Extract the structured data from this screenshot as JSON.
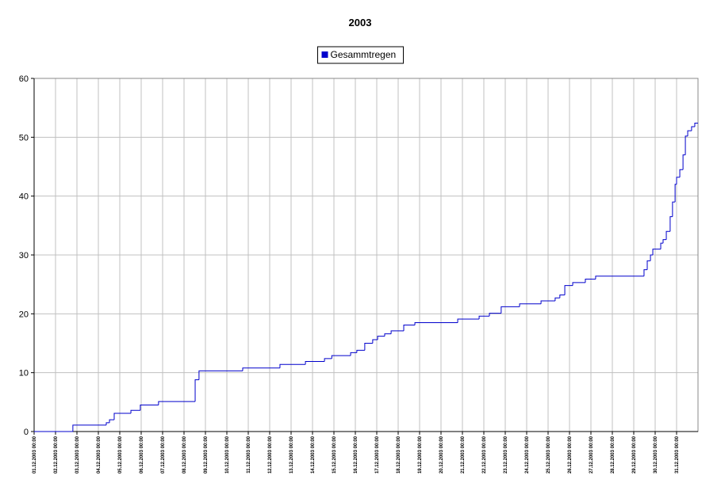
{
  "chart_data": {
    "type": "line",
    "step": true,
    "title": "2003",
    "series": [
      {
        "name": "Gesammtregen",
        "color": "#0000cc",
        "x": [
          0,
          1.81,
          3.37,
          3.52,
          3.74,
          4.52,
          4.96,
          5.81,
          7.52,
          7.7,
          9.74,
          11.48,
          12.67,
          13.56,
          13.9,
          14.78,
          15.07,
          15.44,
          15.81,
          16.04,
          16.37,
          16.67,
          17.26,
          17.78,
          19.78,
          20.78,
          21.26,
          21.81,
          22.67,
          23.67,
          24.33,
          24.55,
          24.78,
          25.15,
          25.74,
          26.22,
          28.48,
          28.63,
          28.78,
          28.89,
          29.26,
          29.37,
          29.52,
          29.7,
          29.81,
          29.93,
          30.0,
          30.15,
          30.3,
          30.41,
          30.52,
          30.7,
          30.85
        ],
        "values": [
          0,
          1.1,
          1.5,
          2.0,
          3.1,
          3.6,
          4.5,
          5.1,
          8.8,
          10.3,
          10.8,
          11.4,
          11.9,
          12.4,
          12.9,
          13.4,
          13.8,
          15.0,
          15.6,
          16.2,
          16.6,
          17.1,
          18.1,
          18.5,
          19.1,
          19.6,
          20.1,
          21.2,
          21.7,
          22.2,
          22.7,
          23.2,
          24.8,
          25.3,
          25.9,
          26.4,
          27.5,
          29.0,
          30.0,
          31.0,
          32.0,
          32.6,
          34.0,
          36.5,
          39.0,
          42.0,
          43.2,
          44.5,
          47.0,
          50.2,
          51.1,
          51.8,
          52.4
        ]
      }
    ],
    "xlim": [
      0,
      31
    ],
    "ylim": [
      0,
      60
    ],
    "yticks": [
      0,
      10,
      20,
      30,
      40,
      50,
      60
    ],
    "xticks": [
      {
        "value": 0,
        "label": "01.12.2003 00:00"
      },
      {
        "value": 1,
        "label": "02.12.2003 00:00"
      },
      {
        "value": 2,
        "label": "03.12.2003 00:00"
      },
      {
        "value": 3,
        "label": "04.12.2003 00:00"
      },
      {
        "value": 4,
        "label": "05.12.2003 00:00"
      },
      {
        "value": 5,
        "label": "06.12.2003 00:00"
      },
      {
        "value": 6,
        "label": "07.12.2003 00:00"
      },
      {
        "value": 7,
        "label": "08.12.2003 00:00"
      },
      {
        "value": 8,
        "label": "09.12.2003 00:00"
      },
      {
        "value": 9,
        "label": "10.12.2003 00:00"
      },
      {
        "value": 10,
        "label": "11.12.2003 00:00"
      },
      {
        "value": 11,
        "label": "12.12.2003 00:00"
      },
      {
        "value": 12,
        "label": "13.12.2003 00:00"
      },
      {
        "value": 13,
        "label": "14.12.2003 00:00"
      },
      {
        "value": 14,
        "label": "15.12.2003 00:00"
      },
      {
        "value": 15,
        "label": "16.12.2003 00:00"
      },
      {
        "value": 16,
        "label": "17.12.2003 00:00"
      },
      {
        "value": 17,
        "label": "18.12.2003 00:00"
      },
      {
        "value": 18,
        "label": "19.12.2003 00:00"
      },
      {
        "value": 19,
        "label": "20.12.2003 00:00"
      },
      {
        "value": 20,
        "label": "21.12.2003 00:00"
      },
      {
        "value": 21,
        "label": "22.12.2003 00:00"
      },
      {
        "value": 22,
        "label": "23.12.2003 00:00"
      },
      {
        "value": 23,
        "label": "24.12.2003 00:00"
      },
      {
        "value": 24,
        "label": "25.12.2003 00:00"
      },
      {
        "value": 25,
        "label": "26.12.2003 00:00"
      },
      {
        "value": 26,
        "label": "27.12.2003 00:00"
      },
      {
        "value": 27,
        "label": "28.12.2003 00:00"
      },
      {
        "value": 28,
        "label": "29.12.2003 00:00"
      },
      {
        "value": 29,
        "label": "30.12.2003 00:00"
      },
      {
        "value": 30,
        "label": "31.12.2003 00:00"
      }
    ],
    "grid": true,
    "legend": "top"
  }
}
